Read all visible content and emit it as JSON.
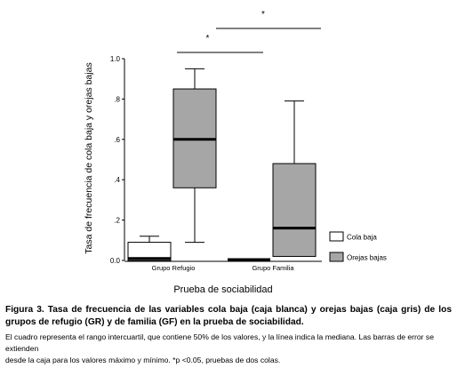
{
  "chart_data": {
    "type": "boxplot",
    "ylabel": "Tasa de frecuencia de cola baja y orejas bajas",
    "xlabel": "Prueba de sociabilidad",
    "ylim": [
      0,
      1.0
    ],
    "yticks": [
      {
        "value": 0.0,
        "label": "0.0"
      },
      {
        "value": 0.2,
        "label": ".2"
      },
      {
        "value": 0.4,
        "label": ".4"
      },
      {
        "value": 0.6,
        "label": ".6"
      },
      {
        "value": 0.8,
        "label": ".8"
      },
      {
        "value": 1.0,
        "label": "1.0"
      }
    ],
    "categories": [
      "Grupo Refugio",
      "Grupo Familia"
    ],
    "series": [
      {
        "name": "Cola baja",
        "color": "#ffffff",
        "boxes": [
          {
            "category": "Grupo Refugio",
            "min": 0.0,
            "q1": 0.0,
            "median": 0.01,
            "q3": 0.09,
            "max": 0.12
          },
          {
            "category": "Grupo Familia",
            "min": 0.0,
            "q1": 0.0,
            "median": 0.0,
            "q3": 0.0,
            "max": 0.0
          }
        ]
      },
      {
        "name": "Orejas bajas",
        "color": "#a6a6a6",
        "boxes": [
          {
            "category": "Grupo Refugio",
            "min": 0.09,
            "q1": 0.36,
            "median": 0.6,
            "q3": 0.85,
            "max": 0.95
          },
          {
            "category": "Grupo Familia",
            "min": 0.02,
            "q1": 0.02,
            "median": 0.16,
            "q3": 0.48,
            "max": 0.79
          }
        ]
      }
    ],
    "significance": [
      {
        "label": "*"
      },
      {
        "label": "*"
      }
    ],
    "legend": {
      "position": "right"
    }
  },
  "caption": {
    "title": "Figura 3. Tasa de frecuencia de las variables cola baja (caja blanca) y orejas bajas (caja gris) de los grupos de refugio (GR) y de familia (GF) en la prueba de sociabilidad.",
    "line1": "El cuadro representa el rango intercuartil, que contiene 50% de los valores, y la línea indica la mediana. Las barras de error se extienden",
    "line2": "desde la caja para los valores máximo y mínimo. *p <0.05, pruebas de dos colas."
  }
}
